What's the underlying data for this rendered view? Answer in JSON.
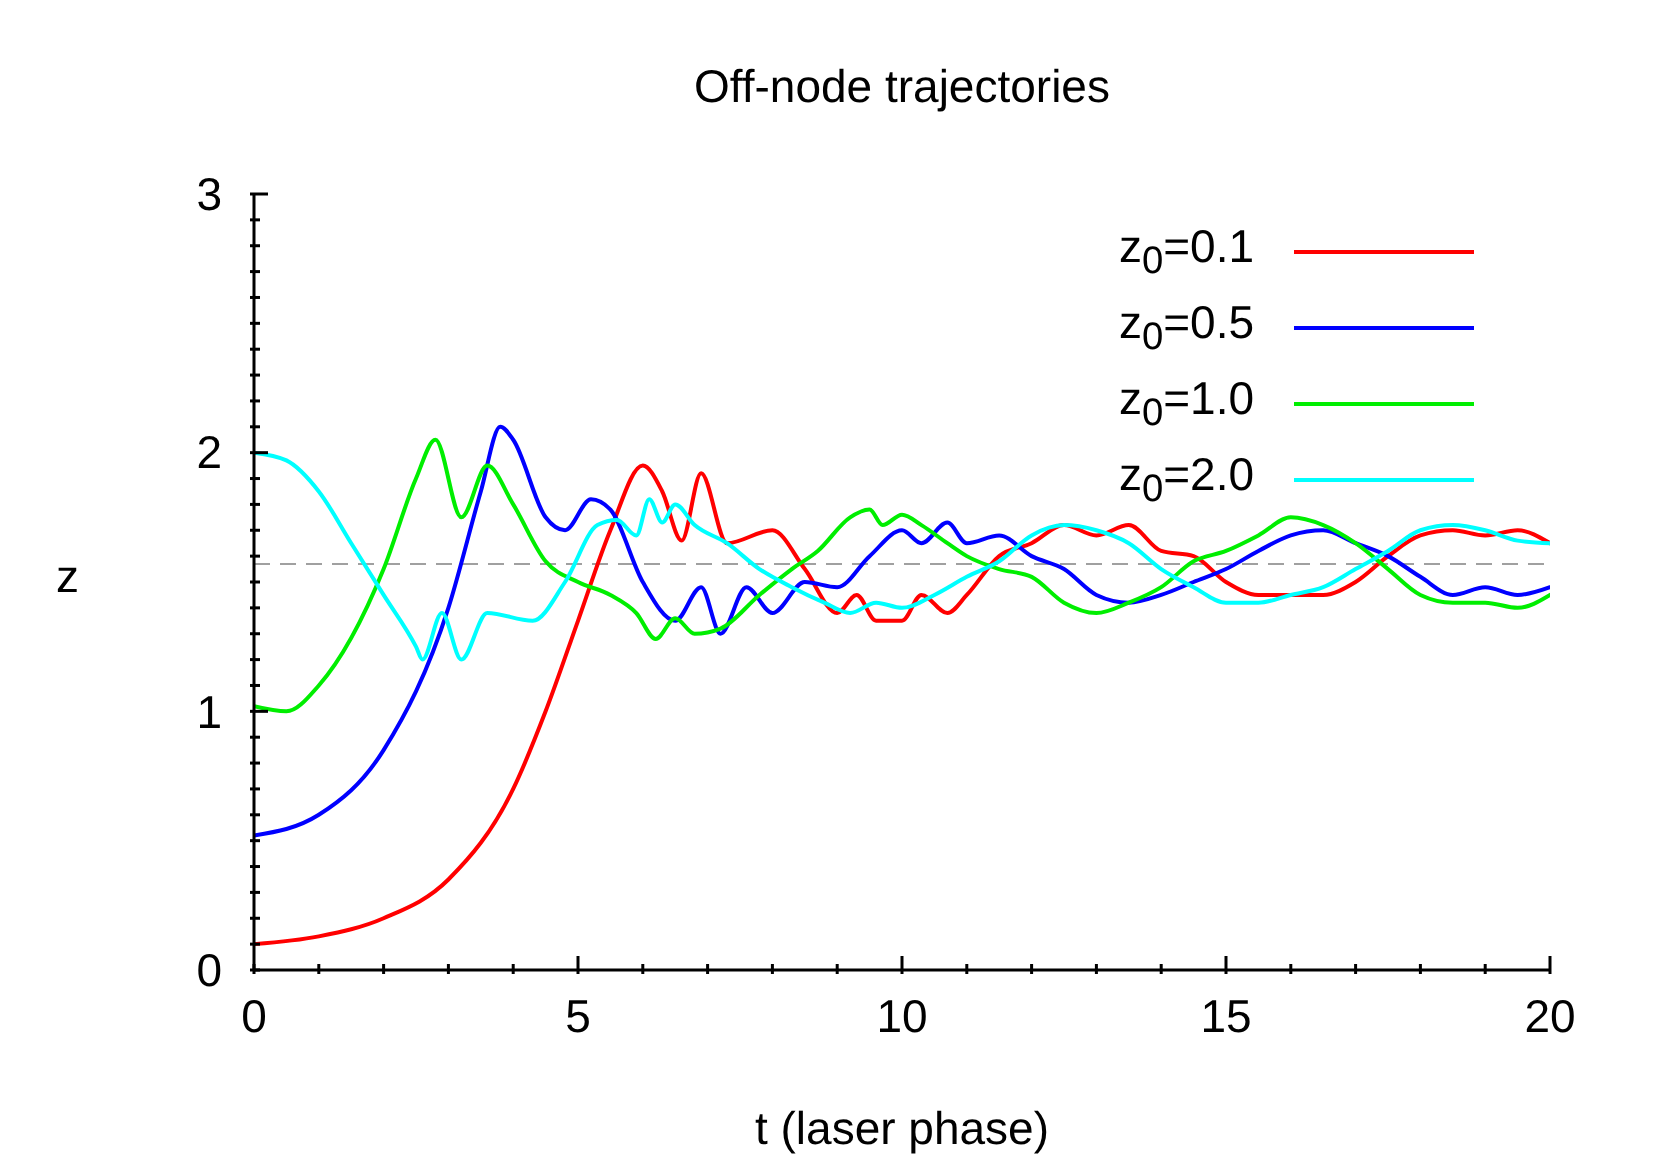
{
  "chart_data": {
    "type": "line",
    "title": "Off-node trajectories",
    "xlabel": "t (laser phase)",
    "ylabel": "z",
    "xlim": [
      0,
      20
    ],
    "xticks": [
      0,
      {
        "value": 1,
        "label": null
      },
      {
        "value": 2,
        "label": null
      },
      {
        "value": 3,
        "label": null
      },
      {
        "value": 4,
        "label": null
      },
      5,
      {
        "value": 6,
        "label": null
      },
      {
        "value": 7,
        "label": null
      },
      {
        "value": 8,
        "label": null
      },
      {
        "value": 9,
        "label": null
      },
      10,
      {
        "value": 11,
        "label": null
      },
      {
        "value": 12,
        "label": null
      },
      {
        "value": 13,
        "label": null
      },
      {
        "value": 14,
        "label": null
      },
      15,
      {
        "value": 16,
        "label": null
      },
      {
        "value": 17,
        "label": null
      },
      {
        "value": 18,
        "label": null
      },
      {
        "value": 19,
        "label": null
      },
      20
    ],
    "ylim": [
      0,
      3
    ],
    "yticks": [
      0,
      {
        "value": 0.1,
        "label": null
      },
      {
        "value": 0.2,
        "label": null
      },
      {
        "value": 0.3,
        "label": null
      },
      {
        "value": 0.4,
        "label": null
      },
      {
        "value": 0.5,
        "label": null
      },
      {
        "value": 0.6,
        "label": null
      },
      {
        "value": 0.7,
        "label": null
      },
      {
        "value": 0.8,
        "label": null
      },
      {
        "value": 0.9,
        "label": null
      },
      1,
      {
        "value": 1.1,
        "label": null
      },
      {
        "value": 1.2,
        "label": null
      },
      {
        "value": 1.3,
        "label": null
      },
      {
        "value": 1.4,
        "label": null
      },
      {
        "value": 1.5,
        "label": null
      },
      {
        "value": 1.6,
        "label": null
      },
      {
        "value": 1.7,
        "label": null
      },
      {
        "value": 1.8,
        "label": null
      },
      {
        "value": 1.9,
        "label": null
      },
      2,
      {
        "value": 2.1,
        "label": null
      },
      {
        "value": 2.2,
        "label": null
      },
      {
        "value": 2.3,
        "label": null
      },
      {
        "value": 2.4,
        "label": null
      },
      {
        "value": 2.5,
        "label": null
      },
      {
        "value": 2.6,
        "label": null
      },
      {
        "value": 2.7,
        "label": null
      },
      {
        "value": 2.8,
        "label": null
      },
      {
        "value": 2.9,
        "label": null
      },
      3
    ],
    "legend": "top right",
    "marker": "none",
    "line_style": "solid",
    "ref_lines": [
      {
        "axis": "y",
        "value": 1.57,
        "color": "#a0a0a0",
        "line_style": "dashed"
      }
    ],
    "series": [
      {
        "name": "z$_{0}$=0.1",
        "color": "#ff0000",
        "x": [
          0,
          1,
          2,
          3,
          4,
          4.5,
          5,
          5.5,
          6,
          6.3,
          6.6,
          6.9,
          7.3,
          8,
          8.5,
          9,
          9.3,
          9.6,
          10,
          10.3,
          10.7,
          11,
          11.5,
          12,
          12.5,
          13,
          13.5,
          14,
          14.5,
          15,
          15.5,
          16,
          16.5,
          17,
          17.5,
          18,
          18.5,
          19,
          19.5,
          20
        ],
        "values": [
          0.1,
          0.13,
          0.2,
          0.35,
          0.7,
          1.0,
          1.35,
          1.7,
          1.95,
          1.85,
          1.66,
          1.92,
          1.65,
          1.7,
          1.55,
          1.38,
          1.45,
          1.35,
          1.35,
          1.45,
          1.38,
          1.45,
          1.6,
          1.65,
          1.72,
          1.68,
          1.72,
          1.62,
          1.6,
          1.5,
          1.45,
          1.45,
          1.45,
          1.5,
          1.6,
          1.68,
          1.7,
          1.68,
          1.7,
          1.65
        ]
      },
      {
        "name": "z$_{0}$=0.5",
        "color": "#0000ff",
        "x": [
          0,
          1,
          2,
          3,
          3.5,
          3.8,
          4,
          4.5,
          4.8,
          5.2,
          5.5,
          6,
          6.5,
          6.9,
          7.2,
          7.6,
          8,
          8.5,
          9,
          9.5,
          10,
          10.3,
          10.7,
          11,
          11.5,
          12,
          12.5,
          13,
          13.5,
          14,
          14.5,
          15,
          15.5,
          16,
          16.5,
          17,
          17.5,
          18,
          18.5,
          19,
          19.5,
          20
        ],
        "values": [
          0.52,
          0.6,
          0.85,
          1.4,
          1.85,
          2.1,
          2.05,
          1.75,
          1.7,
          1.82,
          1.78,
          1.5,
          1.35,
          1.48,
          1.3,
          1.48,
          1.38,
          1.5,
          1.48,
          1.6,
          1.7,
          1.65,
          1.73,
          1.65,
          1.68,
          1.6,
          1.55,
          1.45,
          1.42,
          1.45,
          1.5,
          1.55,
          1.62,
          1.68,
          1.7,
          1.65,
          1.6,
          1.52,
          1.45,
          1.48,
          1.45,
          1.48
        ]
      },
      {
        "name": "z$_{0}$=1.0",
        "color": "#00ee00",
        "x": [
          0,
          0.5,
          1,
          2,
          2.5,
          2.8,
          3.2,
          3.6,
          4,
          4.5,
          5,
          5.5,
          5.9,
          6.2,
          6.5,
          6.8,
          7.2,
          7.8,
          8.3,
          8.7,
          9.2,
          9.5,
          9.7,
          10,
          10.3,
          10.7,
          11,
          11.5,
          12,
          12.5,
          13,
          13.5,
          14,
          14.5,
          15,
          15.5,
          16,
          16.5,
          17,
          17.5,
          18,
          18.5,
          19,
          19.5,
          20
        ],
        "values": [
          1.02,
          1.0,
          1.1,
          1.55,
          1.9,
          2.05,
          1.75,
          1.95,
          1.8,
          1.58,
          1.5,
          1.45,
          1.38,
          1.28,
          1.36,
          1.3,
          1.32,
          1.45,
          1.55,
          1.62,
          1.75,
          1.78,
          1.72,
          1.76,
          1.72,
          1.65,
          1.6,
          1.55,
          1.52,
          1.42,
          1.38,
          1.42,
          1.48,
          1.58,
          1.62,
          1.68,
          1.75,
          1.72,
          1.65,
          1.55,
          1.45,
          1.42,
          1.42,
          1.4,
          1.45
        ]
      },
      {
        "name": "z$_{0}$=2.0",
        "color": "#00ffff",
        "x": [
          0,
          0.5,
          1,
          1.5,
          2,
          2.5,
          2.6,
          2.9,
          3.2,
          3.6,
          4.3,
          4.8,
          5.3,
          5.6,
          5.9,
          6.1,
          6.3,
          6.5,
          6.8,
          7.3,
          7.8,
          8.3,
          8.8,
          9.2,
          9.6,
          10,
          10.5,
          11,
          11.5,
          12,
          12.5,
          13,
          13.5,
          14,
          14.5,
          15,
          15.5,
          16,
          16.5,
          17,
          17.5,
          18,
          18.5,
          19,
          19.5,
          20
        ],
        "values": [
          2.0,
          1.97,
          1.85,
          1.65,
          1.45,
          1.25,
          1.2,
          1.38,
          1.2,
          1.38,
          1.35,
          1.5,
          1.72,
          1.74,
          1.68,
          1.82,
          1.73,
          1.8,
          1.72,
          1.65,
          1.55,
          1.48,
          1.42,
          1.38,
          1.42,
          1.4,
          1.45,
          1.52,
          1.58,
          1.68,
          1.72,
          1.7,
          1.65,
          1.55,
          1.48,
          1.42,
          1.42,
          1.45,
          1.48,
          1.55,
          1.62,
          1.7,
          1.72,
          1.7,
          1.66,
          1.65
        ]
      }
    ]
  }
}
